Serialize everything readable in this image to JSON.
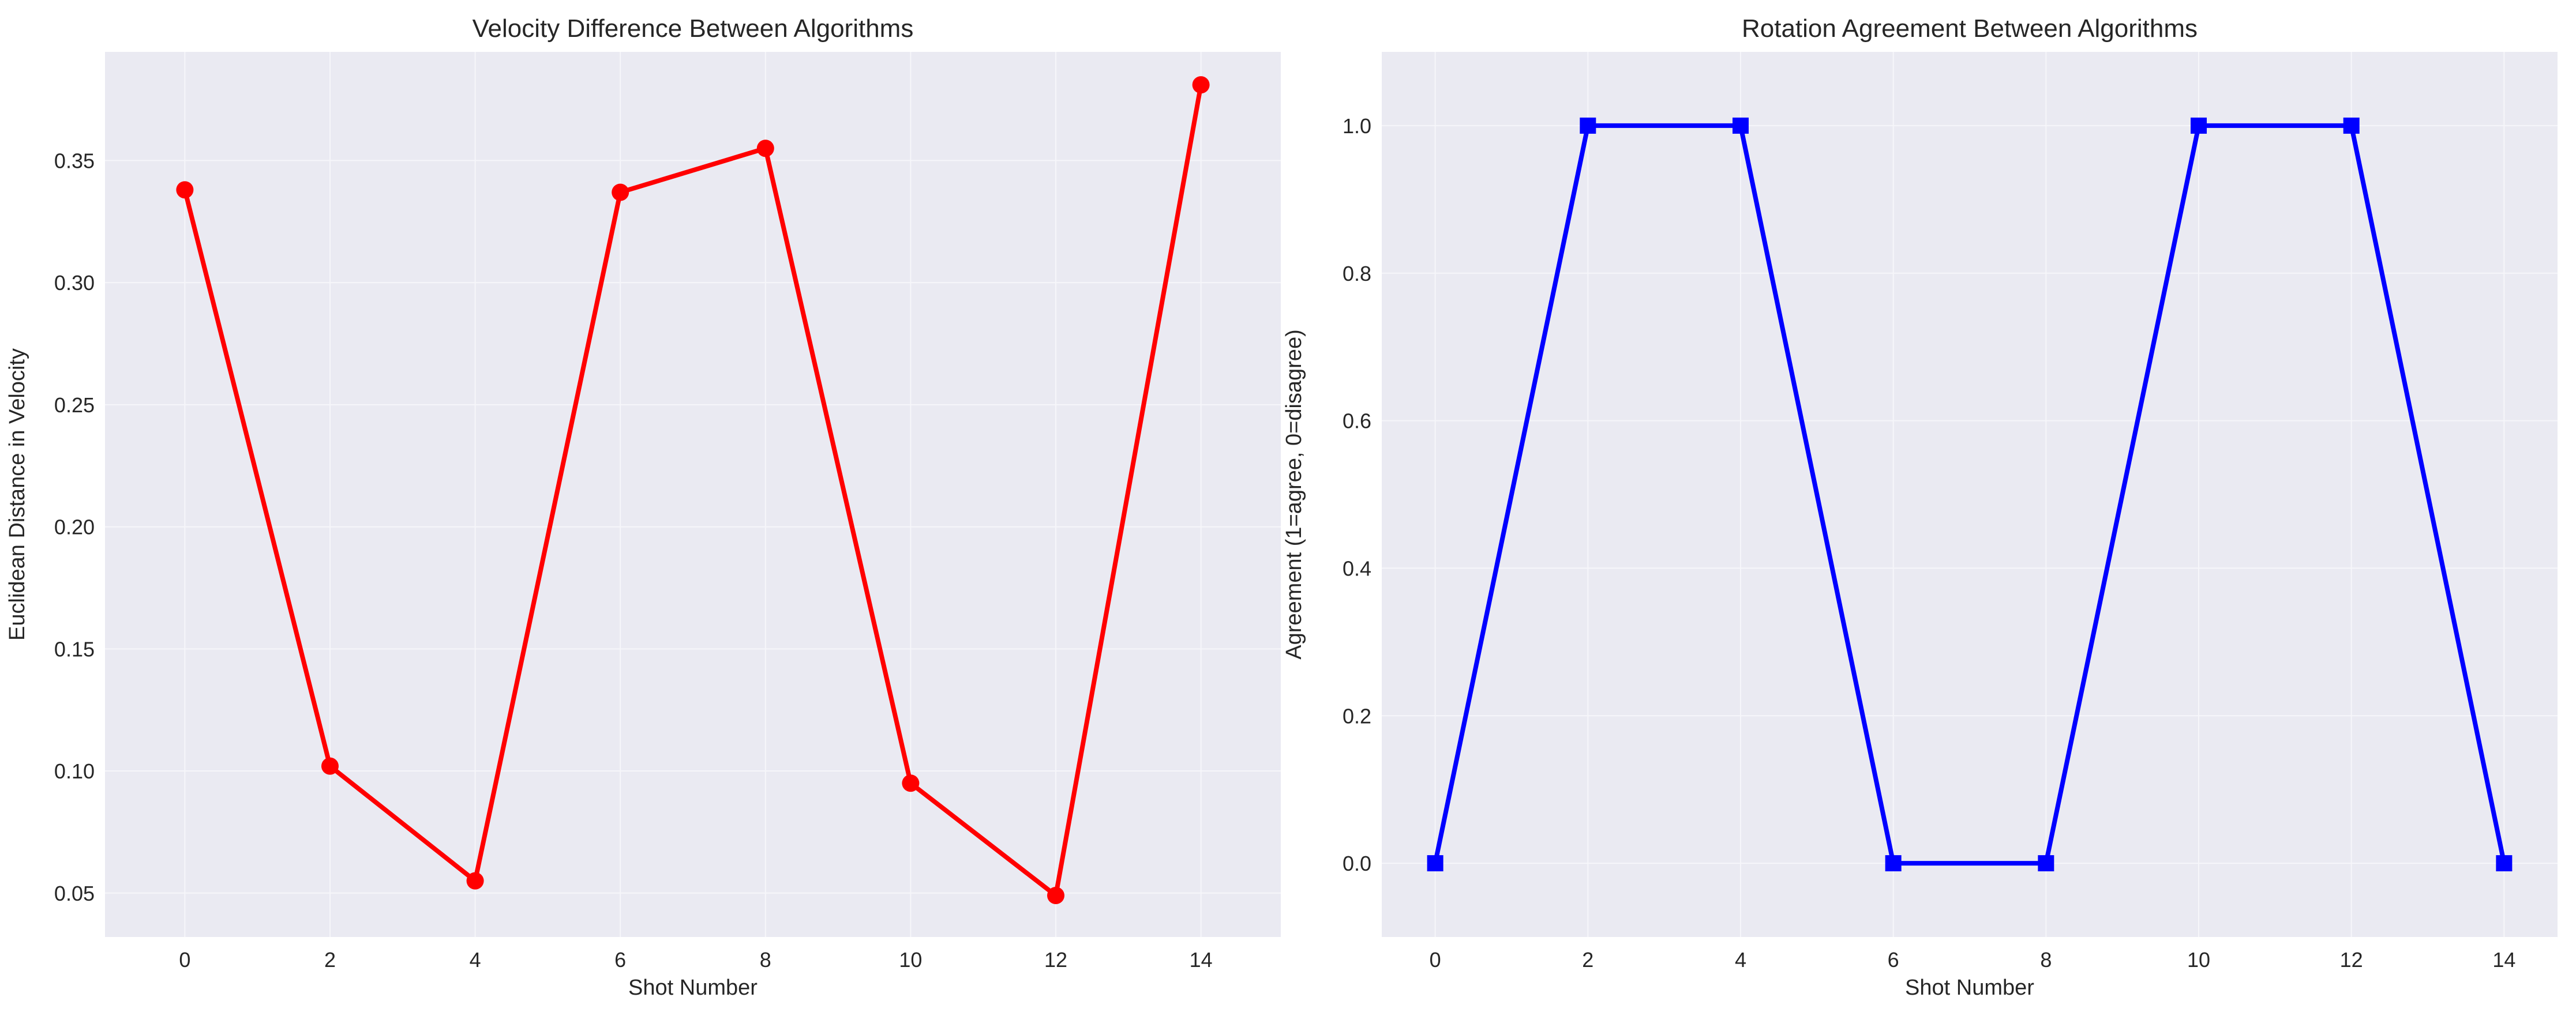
{
  "colors": {
    "plot_background": "#eaeaf2",
    "grid": "#f6f6fa",
    "text": "#262626",
    "series_left": "#ff0000",
    "series_right": "#0000ff"
  },
  "chart_data": [
    {
      "type": "line",
      "title": "Velocity Difference Between Algorithms",
      "xlabel": "Shot Number",
      "ylabel": "Euclidean Distance in Velocity",
      "xlim": [
        -1.1,
        15.1
      ],
      "ylim": [
        0.032,
        0.3945
      ],
      "xticks": [
        0,
        2,
        4,
        6,
        8,
        10,
        12,
        14
      ],
      "yticks": [
        0.05,
        0.1,
        0.15,
        0.2,
        0.25,
        0.3,
        0.35
      ],
      "ytick_labels": [
        "0.05",
        "0.10",
        "0.15",
        "0.20",
        "0.25",
        "0.30",
        "0.35"
      ],
      "grid": true,
      "marker": "circle",
      "color": "#ff0000",
      "x": [
        0,
        2,
        4,
        6,
        8,
        10,
        12,
        14
      ],
      "y": [
        0.338,
        0.102,
        0.055,
        0.337,
        0.355,
        0.095,
        0.049,
        0.381
      ]
    },
    {
      "type": "line",
      "title": "Rotation Agreement Between Algorithms",
      "xlabel": "Shot Number",
      "ylabel": "Agreement (1=agree, 0=disagree)",
      "xlim": [
        -0.7,
        14.7
      ],
      "ylim": [
        -0.1,
        1.1
      ],
      "xticks": [
        0,
        2,
        4,
        6,
        8,
        10,
        12,
        14
      ],
      "yticks": [
        0.0,
        0.2,
        0.4,
        0.6,
        0.8,
        1.0
      ],
      "ytick_labels": [
        "0.0",
        "0.2",
        "0.4",
        "0.6",
        "0.8",
        "1.0"
      ],
      "grid": true,
      "marker": "square",
      "color": "#0000ff",
      "x": [
        0,
        2,
        4,
        6,
        8,
        10,
        12,
        14
      ],
      "y": [
        0,
        1,
        1,
        0,
        0,
        1,
        1,
        0
      ]
    }
  ]
}
